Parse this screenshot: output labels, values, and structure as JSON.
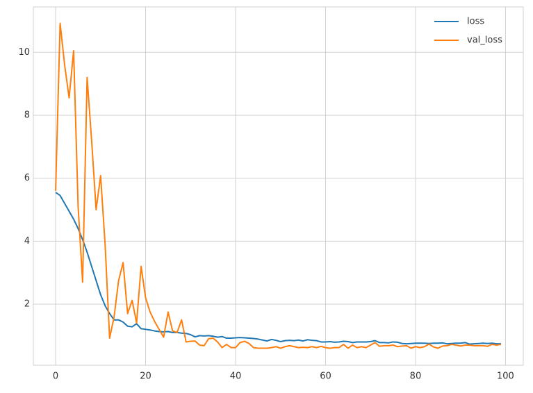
{
  "chart_data": {
    "type": "line",
    "x": [
      0,
      1,
      2,
      3,
      4,
      5,
      6,
      7,
      8,
      9,
      10,
      11,
      12,
      13,
      14,
      15,
      16,
      17,
      18,
      19,
      20,
      21,
      22,
      23,
      24,
      25,
      26,
      27,
      28,
      29,
      30,
      31,
      32,
      33,
      34,
      35,
      36,
      37,
      38,
      39,
      40,
      41,
      42,
      43,
      44,
      45,
      46,
      47,
      48,
      49,
      50,
      51,
      52,
      53,
      54,
      55,
      56,
      57,
      58,
      59,
      60,
      61,
      62,
      63,
      64,
      65,
      66,
      67,
      68,
      69,
      70,
      71,
      72,
      73,
      74,
      75,
      76,
      77,
      78,
      79,
      80,
      81,
      82,
      83,
      84,
      85,
      86,
      87,
      88,
      89,
      90,
      91,
      92,
      93,
      94,
      95,
      96,
      97,
      98,
      99
    ],
    "series": [
      {
        "name": "loss",
        "color": "#1f77b4",
        "values": [
          5.55,
          5.45,
          5.2,
          4.95,
          4.7,
          4.4,
          4.05,
          3.65,
          3.2,
          2.75,
          2.3,
          1.95,
          1.7,
          1.5,
          1.5,
          1.43,
          1.3,
          1.28,
          1.38,
          1.22,
          1.2,
          1.18,
          1.15,
          1.13,
          1.12,
          1.13,
          1.1,
          1.1,
          1.08,
          1.07,
          1.03,
          0.96,
          1.0,
          0.99,
          1.0,
          0.98,
          0.95,
          0.97,
          0.92,
          0.92,
          0.93,
          0.94,
          0.93,
          0.92,
          0.91,
          0.89,
          0.86,
          0.83,
          0.88,
          0.85,
          0.81,
          0.84,
          0.85,
          0.84,
          0.86,
          0.83,
          0.87,
          0.85,
          0.84,
          0.8,
          0.8,
          0.81,
          0.79,
          0.8,
          0.82,
          0.81,
          0.78,
          0.8,
          0.8,
          0.8,
          0.81,
          0.84,
          0.78,
          0.78,
          0.77,
          0.8,
          0.79,
          0.75,
          0.74,
          0.75,
          0.76,
          0.76,
          0.76,
          0.75,
          0.76,
          0.76,
          0.77,
          0.74,
          0.75,
          0.76,
          0.76,
          0.78,
          0.73,
          0.74,
          0.75,
          0.76,
          0.75,
          0.76,
          0.74,
          0.74
        ]
      },
      {
        "name": "val_loss",
        "color": "#ff7f0e",
        "values": [
          5.6,
          10.92,
          9.6,
          8.55,
          10.05,
          5.1,
          2.7,
          9.2,
          7.2,
          5.0,
          6.08,
          3.9,
          0.92,
          1.6,
          2.75,
          3.32,
          1.7,
          2.12,
          1.4,
          3.2,
          2.2,
          1.75,
          1.45,
          1.2,
          0.95,
          1.75,
          1.15,
          1.1,
          1.5,
          0.8,
          0.82,
          0.83,
          0.7,
          0.68,
          0.9,
          0.92,
          0.8,
          0.62,
          0.72,
          0.62,
          0.62,
          0.78,
          0.82,
          0.75,
          0.62,
          0.6,
          0.6,
          0.6,
          0.62,
          0.65,
          0.6,
          0.65,
          0.68,
          0.65,
          0.62,
          0.63,
          0.62,
          0.65,
          0.62,
          0.66,
          0.62,
          0.6,
          0.62,
          0.62,
          0.72,
          0.6,
          0.7,
          0.62,
          0.65,
          0.62,
          0.7,
          0.78,
          0.66,
          0.68,
          0.68,
          0.7,
          0.65,
          0.67,
          0.68,
          0.6,
          0.65,
          0.62,
          0.65,
          0.73,
          0.64,
          0.6,
          0.67,
          0.68,
          0.72,
          0.7,
          0.67,
          0.7,
          0.7,
          0.68,
          0.68,
          0.68,
          0.66,
          0.72,
          0.7,
          0.72
        ]
      }
    ],
    "xlim": [
      -4.95,
      103.95
    ],
    "xticks": [
      0,
      20,
      40,
      60,
      80,
      100
    ],
    "ylim": [
      0.06,
      11.44
    ],
    "yticks": [
      2,
      4,
      6,
      8,
      10
    ],
    "grid": true,
    "legend": "upper right"
  }
}
